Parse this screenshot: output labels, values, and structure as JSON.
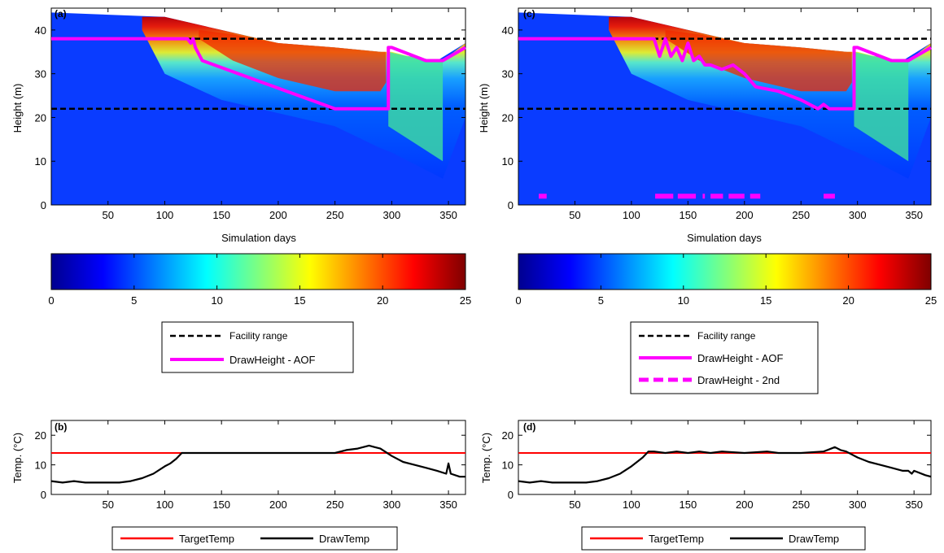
{
  "colorbar": {
    "min": 0,
    "max": 25,
    "ticks": [
      "0",
      "5",
      "10",
      "15",
      "20",
      "25"
    ],
    "ramp": [
      "#00008f",
      "#0000ff",
      "#007fff",
      "#00ffff",
      "#7fff7f",
      "#ffff00",
      "#ff7f00",
      "#ff0000",
      "#7f0000"
    ]
  },
  "colors": {
    "facility": "#000000",
    "draw_height": "#ff00ff",
    "target_temp": "#ff0000",
    "draw_temp": "#000000"
  },
  "legends": {
    "a": [
      "Facility range",
      "DrawHeight - AOF"
    ],
    "c": [
      "Facility range",
      "DrawHeight - AOF",
      "DrawHeight - 2nd"
    ],
    "b": [
      "TargetTemp",
      "DrawTemp"
    ],
    "d": [
      "TargetTemp",
      "DrawTemp"
    ]
  },
  "chart_data": [
    {
      "panel": "(a)",
      "type": "heatmap",
      "xlabel": "Simulation days",
      "ylabel": "Height (m)",
      "xlim": [
        0,
        365
      ],
      "ylim": [
        0,
        45
      ],
      "xticks": [
        "50",
        "100",
        "150",
        "200",
        "250",
        "300",
        "350"
      ],
      "yticks": [
        "0",
        "10",
        "20",
        "30",
        "40"
      ],
      "colorbar_range": [
        0,
        25
      ],
      "surface_top": [
        [
          0,
          44
        ],
        [
          100,
          43
        ],
        [
          150,
          40
        ],
        [
          200,
          37
        ],
        [
          250,
          36
        ],
        [
          290,
          35
        ],
        [
          340,
          33
        ],
        [
          365,
          37
        ]
      ],
      "facility_range": [
        22,
        38
      ],
      "series": [
        {
          "name": "DrawHeight - AOF",
          "x": [
            0,
            120,
            123,
            125,
            127,
            133,
            250,
            297,
            297,
            300,
            330,
            345,
            365
          ],
          "y": [
            38,
            38,
            37,
            38,
            36,
            33,
            22,
            22,
            36,
            36,
            33,
            33,
            36
          ]
        }
      ]
    },
    {
      "panel": "(c)",
      "type": "heatmap",
      "xlabel": "Simulation days",
      "ylabel": "Height (m)",
      "xlim": [
        0,
        365
      ],
      "ylim": [
        0,
        45
      ],
      "xticks": [
        "50",
        "100",
        "150",
        "200",
        "250",
        "300",
        "350"
      ],
      "yticks": [
        "0",
        "10",
        "20",
        "30",
        "40"
      ],
      "colorbar_range": [
        0,
        25
      ],
      "surface_top": [
        [
          0,
          44
        ],
        [
          100,
          43
        ],
        [
          150,
          40
        ],
        [
          200,
          37
        ],
        [
          250,
          36
        ],
        [
          290,
          35
        ],
        [
          340,
          33
        ],
        [
          365,
          37
        ]
      ],
      "facility_range": [
        22,
        38
      ],
      "series": [
        {
          "name": "DrawHeight - AOF",
          "x": [
            0,
            120,
            125,
            130,
            135,
            140,
            145,
            150,
            155,
            160,
            165,
            170,
            180,
            190,
            200,
            210,
            230,
            250,
            265,
            270,
            275,
            280,
            297,
            297,
            300,
            330,
            345,
            365
          ],
          "y": [
            38,
            38,
            34,
            38,
            34,
            36,
            33,
            37,
            33,
            34,
            32,
            32,
            31,
            32,
            30,
            27,
            26,
            24,
            22,
            23,
            22,
            22,
            22,
            36,
            36,
            33,
            33,
            36
          ]
        },
        {
          "name": "DrawHeight - 2nd",
          "segments": [
            [
              18,
              25
            ],
            [
              121,
              137
            ],
            [
              141,
              157
            ],
            [
              163,
              165
            ],
            [
              170,
              181
            ],
            [
              186,
              200
            ],
            [
              205,
              214
            ],
            [
              270,
              280
            ]
          ],
          "y": 2
        }
      ]
    },
    {
      "panel": "(b)",
      "type": "line",
      "xlabel": "",
      "ylabel": "Temp. (°C)",
      "xlim": [
        0,
        365
      ],
      "ylim": [
        0,
        25
      ],
      "xticks": [
        "50",
        "100",
        "150",
        "200",
        "250",
        "300",
        "350"
      ],
      "yticks": [
        "0",
        "10",
        "20"
      ],
      "series": [
        {
          "name": "TargetTemp",
          "x": [
            0,
            365
          ],
          "y": [
            14,
            14
          ]
        },
        {
          "name": "DrawTemp",
          "x": [
            0,
            10,
            20,
            30,
            40,
            50,
            60,
            70,
            80,
            90,
            100,
            105,
            110,
            115,
            120,
            150,
            200,
            250,
            260,
            270,
            280,
            285,
            290,
            300,
            310,
            320,
            330,
            340,
            348,
            350,
            352,
            360,
            365
          ],
          "y": [
            4.5,
            4,
            4.5,
            4,
            4,
            4,
            4,
            4.5,
            5.5,
            7,
            9.5,
            10.5,
            12,
            14,
            14,
            14,
            14,
            14,
            15,
            15.5,
            16.5,
            16,
            15.5,
            13,
            11,
            10,
            9,
            8,
            7,
            10.5,
            7,
            6,
            6
          ]
        }
      ]
    },
    {
      "panel": "(d)",
      "type": "line",
      "xlabel": "",
      "ylabel": "Temp. (°C)",
      "xlim": [
        0,
        365
      ],
      "ylim": [
        0,
        25
      ],
      "xticks": [
        "50",
        "100",
        "150",
        "200",
        "250",
        "300",
        "350"
      ],
      "yticks": [
        "0",
        "10",
        "20"
      ],
      "series": [
        {
          "name": "TargetTemp",
          "x": [
            0,
            365
          ],
          "y": [
            14,
            14
          ]
        },
        {
          "name": "DrawTemp",
          "x": [
            0,
            10,
            20,
            30,
            40,
            50,
            60,
            70,
            80,
            90,
            100,
            105,
            110,
            115,
            120,
            130,
            140,
            150,
            160,
            170,
            180,
            200,
            220,
            230,
            250,
            270,
            280,
            285,
            290,
            300,
            310,
            320,
            330,
            340,
            345,
            348,
            350,
            360,
            365
          ],
          "y": [
            4.5,
            4,
            4.5,
            4,
            4,
            4,
            4,
            4.5,
            5.5,
            7,
            9.5,
            11,
            12.5,
            14.5,
            14.5,
            14,
            14.5,
            14,
            14.5,
            14,
            14.5,
            14,
            14.5,
            14,
            14,
            14.5,
            16,
            15,
            14.5,
            12.5,
            11,
            10,
            9,
            8,
            8,
            7,
            8,
            6.5,
            6
          ]
        }
      ]
    }
  ]
}
